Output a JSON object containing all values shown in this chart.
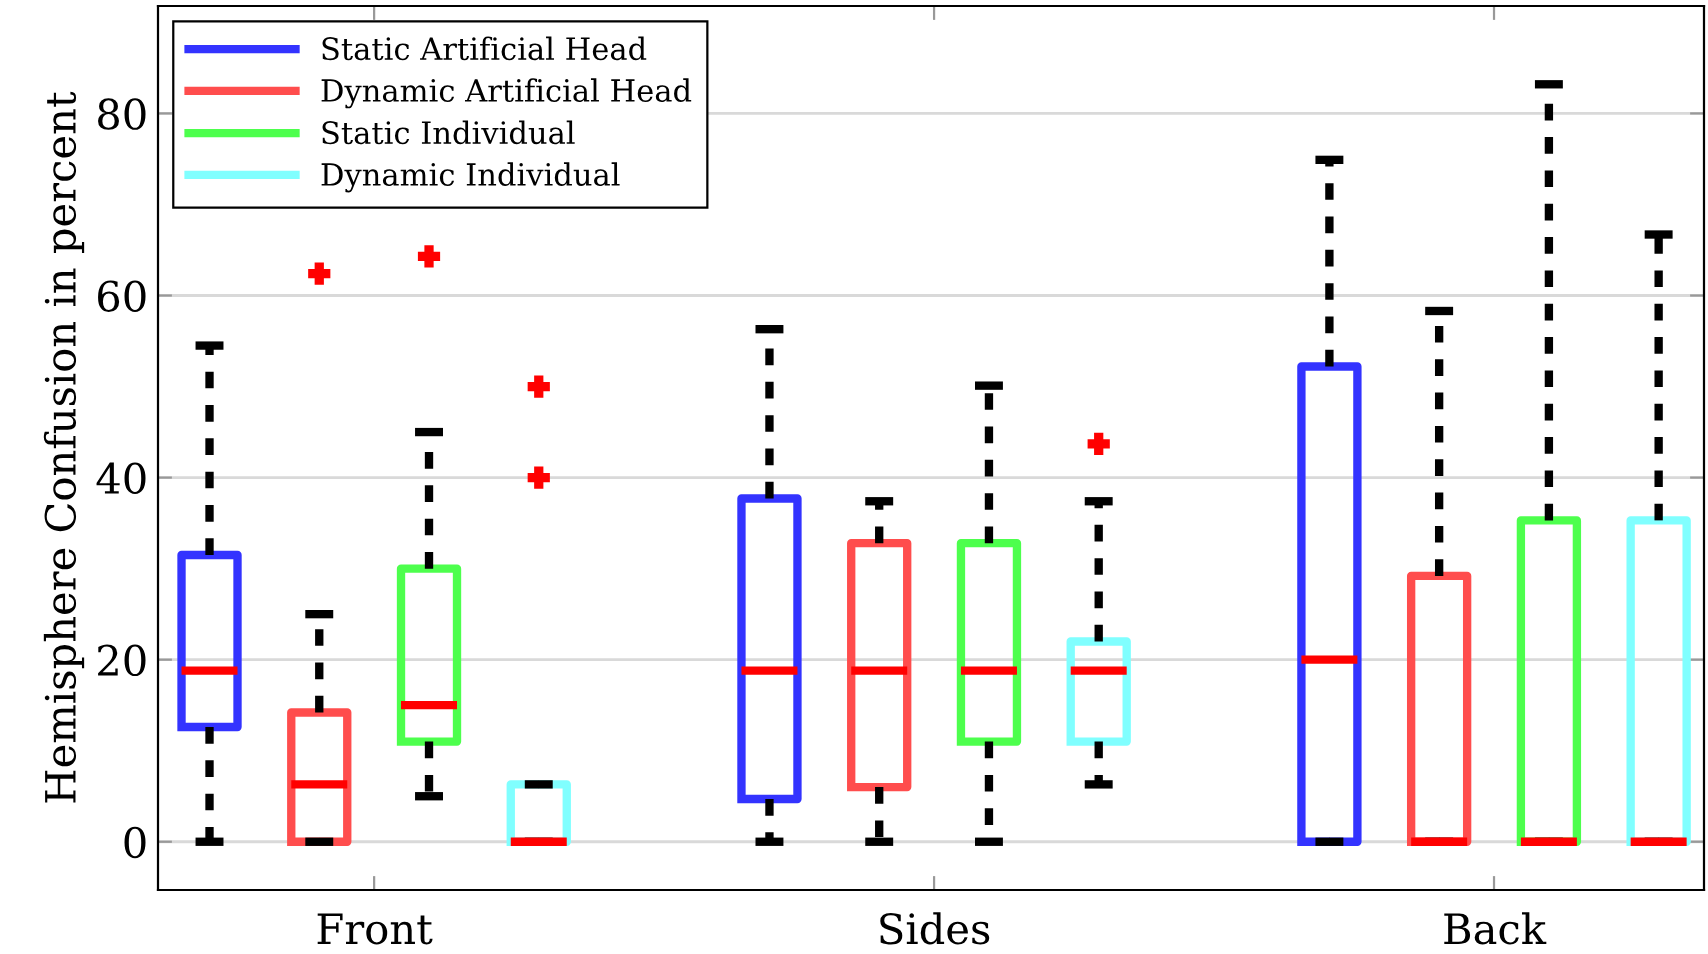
{
  "chart_data": {
    "type": "box",
    "ylabel": "Hemisphere Confusion in percent",
    "categories": [
      "Front",
      "Sides",
      "Back"
    ],
    "ylim": [
      -5.3,
      91.8
    ],
    "yticks": [
      0,
      20,
      40,
      60,
      80
    ],
    "grid": "y",
    "legend": "top left",
    "series": [
      {
        "name": "Static Artificial Head",
        "color": "#3333ff",
        "boxes": [
          {
            "low": 0,
            "q1": 12.6,
            "median": 18.8,
            "q3": 31.5,
            "high": 54.5
          },
          {
            "low": 0,
            "q1": 4.7,
            "median": 18.8,
            "q3": 37.7,
            "high": 56.3
          },
          {
            "low": 0,
            "q1": 0,
            "median": 20,
            "q3": 52.2,
            "high": 74.9
          }
        ]
      },
      {
        "name": "Dynamic Artificial Head",
        "color": "#ff4d4d",
        "boxes": [
          {
            "low": 0,
            "q1": 0,
            "median": 6.3,
            "q3": 14.2,
            "high": 25,
            "outliers": [
              62.4
            ]
          },
          {
            "low": 0,
            "q1": 6,
            "median": 18.8,
            "q3": 32.8,
            "high": 37.4
          },
          {
            "low": 0,
            "q1": 0,
            "median": 0,
            "q3": 29.2,
            "high": 58.3
          }
        ]
      },
      {
        "name": "Static Individual",
        "color": "#4dff4d",
        "boxes": [
          {
            "low": 5,
            "q1": 11,
            "median": 15,
            "q3": 30,
            "high": 45,
            "outliers": [
              64.3
            ]
          },
          {
            "low": 0,
            "q1": 11,
            "median": 18.8,
            "q3": 32.8,
            "high": 50.1
          },
          {
            "low": 0,
            "q1": 0,
            "median": 0,
            "q3": 35.3,
            "high": 83.2
          }
        ]
      },
      {
        "name": "Dynamic Individual",
        "color": "#80ffff",
        "boxes": [
          {
            "low": 0,
            "q1": 0,
            "median": 0,
            "q3": 6.3,
            "high": 6.3,
            "outliers": [
              50,
              40
            ]
          },
          {
            "low": 6.3,
            "q1": 11,
            "median": 18.8,
            "q3": 22,
            "high": 37.4,
            "outliers": [
              43.7
            ]
          },
          {
            "low": 0,
            "q1": 0,
            "median": 0,
            "q3": 35.3,
            "high": 66.7
          }
        ]
      }
    ]
  }
}
